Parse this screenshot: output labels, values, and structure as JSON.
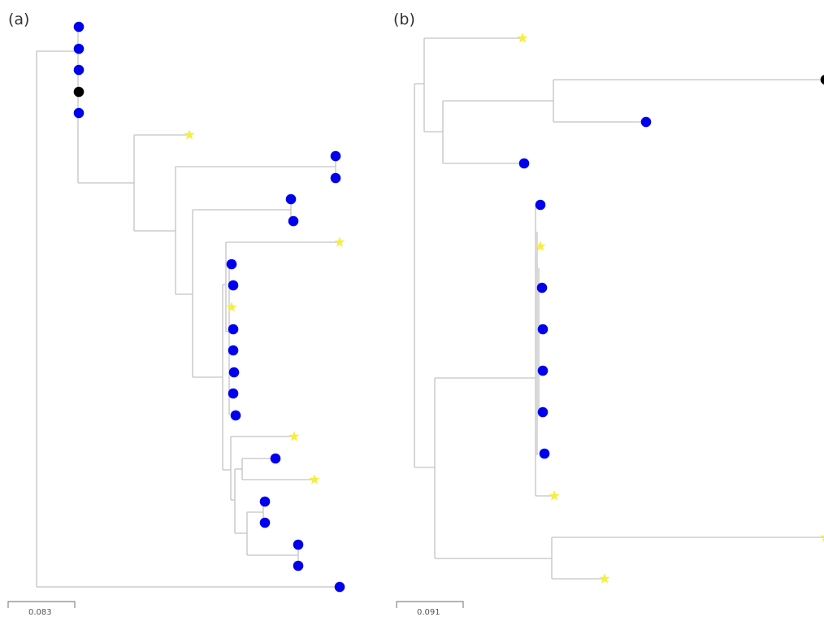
{
  "panels": [
    {
      "label": "(a)",
      "scale_label": "0.083"
    },
    {
      "label": "(b)",
      "scale_label": "0.091"
    }
  ],
  "colors": {
    "circle_tip": "#0000ee",
    "black_tip": "#000000",
    "star_tip": "#f5ee3c",
    "branch": "#c4c4c4"
  },
  "legend": []
}
